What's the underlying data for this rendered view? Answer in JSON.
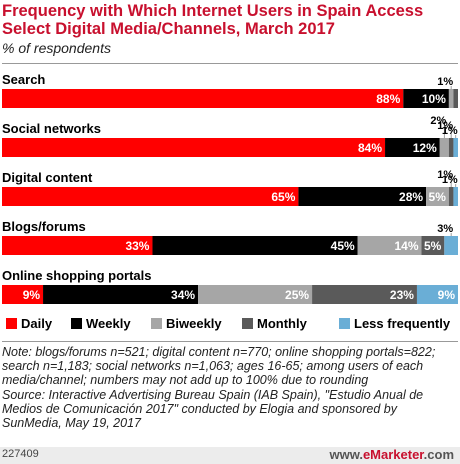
{
  "title": "Frequency with Which Internet Users in Spain Access Select Digital Media/Channels, March 2017",
  "subtitle": "% of respondents",
  "notes": "Note: blogs/forums n=521; digital content n=770; online shopping portals=822; search n=1,183; social networks n=1,063; ages 16-65; among users of each media/channel; numbers may not add up to 100% due to rounding",
  "source": "Source: Interactive Advertising Bureau Spain (IAB Spain), \"Estudio Anual de Medios de Comunicación 2017\" conducted by Elogia and sponsored by SunMedia, May 19, 2017",
  "chart_id": "227409",
  "brand": {
    "prefix": "www.",
    "name": "eMarketer",
    "suffix": ".com"
  },
  "colors": {
    "title": "#c8102e",
    "Daily": "#ff0000",
    "Weekly": "#000000",
    "Biweekly": "#a6a6a6",
    "Monthly": "#5a5a5a",
    "Less frequently": "#6aaed6"
  },
  "chart_data": {
    "type": "bar",
    "stacked": true,
    "orientation": "horizontal",
    "categories": [
      "Search",
      "Social networks",
      "Digital content",
      "Blogs/forums",
      "Online shopping portals"
    ],
    "series": [
      {
        "name": "Daily",
        "values": [
          88,
          84,
          65,
          33,
          9
        ]
      },
      {
        "name": "Weekly",
        "values": [
          10,
          12,
          28,
          45,
          34
        ]
      },
      {
        "name": "Biweekly",
        "values": [
          1,
          2,
          5,
          14,
          25
        ]
      },
      {
        "name": "Monthly",
        "values": [
          1,
          1,
          1,
          5,
          23
        ]
      },
      {
        "name": "Less frequently",
        "values": [
          0,
          1,
          1,
          3,
          9
        ]
      }
    ],
    "labels": [
      [
        "88%",
        "10%",
        "1%",
        "",
        ""
      ],
      [
        "84%",
        "12%",
        "2%",
        "1%",
        "1%"
      ],
      [
        "65%",
        "28%",
        "5%",
        "1%",
        "1%"
      ],
      [
        "33%",
        "45%",
        "14%",
        "5%",
        "3%"
      ],
      [
        "9%",
        "34%",
        "25%",
        "23%",
        "9%"
      ]
    ],
    "xlim": [
      0,
      100
    ],
    "legend": {
      "position": "bottom",
      "entries": [
        "Daily",
        "Weekly",
        "Biweekly",
        "Monthly",
        "Less frequently"
      ]
    }
  }
}
